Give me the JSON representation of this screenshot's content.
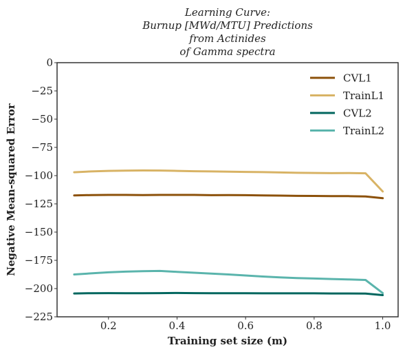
{
  "chart_data": {
    "type": "line",
    "title_lines": [
      "Learning Curve:",
      "Burnup [MWd/MTU] Predictions",
      "from Actinides",
      "of Gamma spectra"
    ],
    "xlabel": "Training set size (m)",
    "ylabel": "Negative Mean-squared Error",
    "xlim": [
      0.05,
      1.045
    ],
    "ylim": [
      -225,
      0
    ],
    "xticks": [
      0.2,
      0.4,
      0.6,
      0.8,
      1.0
    ],
    "xtick_labels": [
      "0.2",
      "0.4",
      "0.6",
      "0.8",
      "1.0"
    ],
    "yticks": [
      0,
      -25,
      -50,
      -75,
      -100,
      -125,
      -150,
      -175,
      -200,
      -225
    ],
    "ytick_labels": [
      "0",
      "−25",
      "−50",
      "−75",
      "−100",
      "−125",
      "−150",
      "−175",
      "−200",
      "−225"
    ],
    "grid": false,
    "legend_position": "top-right",
    "series": [
      {
        "name": "CVL1",
        "color": "#8c510a",
        "x": [
          0.1,
          0.15,
          0.2,
          0.25,
          0.3,
          0.35,
          0.4,
          0.45,
          0.5,
          0.55,
          0.6,
          0.65,
          0.7,
          0.75,
          0.8,
          0.85,
          0.9,
          0.95,
          1.0
        ],
        "y": [
          -117.5,
          -117.2,
          -117.1,
          -117.1,
          -117.2,
          -117.1,
          -117.1,
          -117.1,
          -117.3,
          -117.2,
          -117.3,
          -117.5,
          -117.7,
          -117.9,
          -118.0,
          -118.2,
          -118.2,
          -118.4,
          -120.0
        ]
      },
      {
        "name": "TrainL1",
        "color": "#d8b365",
        "x": [
          0.1,
          0.15,
          0.2,
          0.25,
          0.3,
          0.35,
          0.4,
          0.45,
          0.5,
          0.55,
          0.6,
          0.65,
          0.7,
          0.75,
          0.8,
          0.85,
          0.9,
          0.95,
          1.0
        ],
        "y": [
          -97.0,
          -96.3,
          -95.8,
          -95.6,
          -95.4,
          -95.5,
          -95.8,
          -96.1,
          -96.3,
          -96.5,
          -96.7,
          -96.9,
          -97.2,
          -97.5,
          -97.6,
          -97.8,
          -97.7,
          -97.9,
          -114.0
        ]
      },
      {
        "name": "CVL2",
        "color": "#01665e",
        "x": [
          0.1,
          0.15,
          0.2,
          0.25,
          0.3,
          0.35,
          0.4,
          0.45,
          0.5,
          0.55,
          0.6,
          0.65,
          0.7,
          0.75,
          0.8,
          0.85,
          0.9,
          0.95,
          1.0
        ],
        "y": [
          -204.3,
          -204.1,
          -204.0,
          -204.1,
          -204.1,
          -204.0,
          -203.9,
          -204.0,
          -204.1,
          -204.1,
          -204.1,
          -204.2,
          -204.2,
          -204.2,
          -204.2,
          -204.3,
          -204.3,
          -204.4,
          -205.8
        ]
      },
      {
        "name": "TrainL2",
        "color": "#5ab4ac",
        "x": [
          0.1,
          0.15,
          0.2,
          0.25,
          0.3,
          0.35,
          0.4,
          0.45,
          0.5,
          0.55,
          0.6,
          0.65,
          0.7,
          0.75,
          0.8,
          0.85,
          0.9,
          0.95,
          1.0
        ],
        "y": [
          -187.5,
          -186.5,
          -185.6,
          -185.0,
          -184.6,
          -184.4,
          -185.2,
          -186.0,
          -186.7,
          -187.5,
          -188.4,
          -189.3,
          -190.1,
          -190.7,
          -191.1,
          -191.5,
          -191.9,
          -192.4,
          -204.0
        ]
      }
    ]
  }
}
